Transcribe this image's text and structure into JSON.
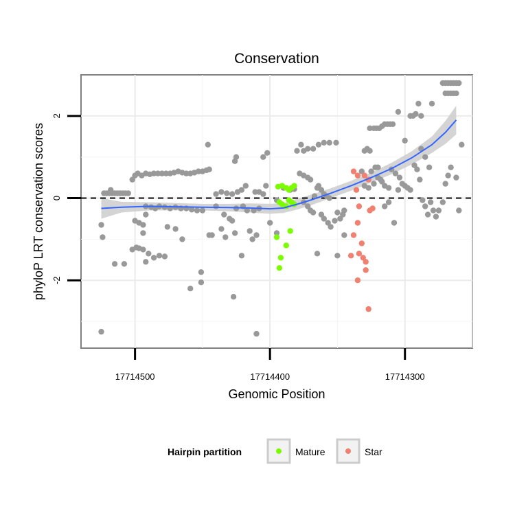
{
  "chart_data": {
    "type": "scatter",
    "title": "Conservation",
    "xlabel": "Genomic Position",
    "ylabel": "phyloP LRT conservation scores",
    "x_reversed": true,
    "xlim": [
      17714540,
      17714250
    ],
    "ylim": [
      -3.65,
      3.0
    ],
    "x_ticks": [
      17714500,
      17714400,
      17714300
    ],
    "x_tick_labels": [
      "17714500",
      "17714400",
      "17714300"
    ],
    "y_ticks": [
      -2,
      0,
      2
    ],
    "y_tick_labels": [
      "-2",
      "0",
      "2"
    ],
    "grid": true,
    "reference_line": {
      "y": 0,
      "style": "dashed"
    },
    "legend": {
      "title": "Hairpin partition",
      "placement": "bottom",
      "entries": [
        {
          "label": "Mature",
          "color": "#7cfc00"
        },
        {
          "label": "Star",
          "color": "#f08070"
        }
      ]
    },
    "series": [
      {
        "group": "other",
        "color": "#999999",
        "points": [
          [
            17714525,
            -3.25
          ],
          [
            17714525,
            -0.65
          ],
          [
            17714524,
            -0.95
          ],
          [
            17714523,
            0.12
          ],
          [
            17714521,
            0.12
          ],
          [
            17714519,
            0.12
          ],
          [
            17714517,
            0.12
          ],
          [
            17714515,
            0.12
          ],
          [
            17714513,
            0.12
          ],
          [
            17714511,
            0.12
          ],
          [
            17714509,
            0.12
          ],
          [
            17714507,
            0.12
          ],
          [
            17714505,
            0.12
          ],
          [
            17714515,
            -1.6
          ],
          [
            17714508,
            -1.6
          ],
          [
            17714518,
            0.2
          ],
          [
            17714502,
            0.45
          ],
          [
            17714500,
            0.55
          ],
          [
            17714498,
            0.6
          ],
          [
            17714495,
            0.55
          ],
          [
            17714492,
            0.6
          ],
          [
            17714489,
            0.58
          ],
          [
            17714486,
            0.6
          ],
          [
            17714483,
            0.6
          ],
          [
            17714480,
            0.6
          ],
          [
            17714477,
            0.6
          ],
          [
            17714474,
            0.6
          ],
          [
            17714471,
            0.62
          ],
          [
            17714468,
            0.65
          ],
          [
            17714465,
            0.62
          ],
          [
            17714462,
            0.6
          ],
          [
            17714459,
            0.6
          ],
          [
            17714456,
            0.62
          ],
          [
            17714453,
            0.65
          ],
          [
            17714450,
            0.65
          ],
          [
            17714447,
            0.68
          ],
          [
            17714445,
            0.7
          ],
          [
            17714500,
            -0.55
          ],
          [
            17714497,
            -0.6
          ],
          [
            17714494,
            -0.85
          ],
          [
            17714494,
            -0.65
          ],
          [
            17714492,
            -0.4
          ],
          [
            17714502,
            -1.25
          ],
          [
            17714499,
            -1.2
          ],
          [
            17714497,
            -1.22
          ],
          [
            17714494,
            -1.25
          ],
          [
            17714490,
            -1.35
          ],
          [
            17714486,
            -1.45
          ],
          [
            17714482,
            -1.4
          ],
          [
            17714478,
            -1.42
          ],
          [
            17714492,
            -1.55
          ],
          [
            17714492,
            -0.2
          ],
          [
            17714488,
            -0.22
          ],
          [
            17714485,
            -0.25
          ],
          [
            17714482,
            -0.2
          ],
          [
            17714478,
            -0.22
          ],
          [
            17714474,
            -0.25
          ],
          [
            17714470,
            -0.22
          ],
          [
            17714466,
            -0.25
          ],
          [
            17714462,
            -0.25
          ],
          [
            17714458,
            -0.28
          ],
          [
            17714454,
            -0.3
          ],
          [
            17714450,
            -0.3
          ],
          [
            17714476,
            -0.7
          ],
          [
            17714470,
            -0.75
          ],
          [
            17714465,
            -1.0
          ],
          [
            17714459,
            -2.2
          ],
          [
            17714451,
            -1.8
          ],
          [
            17714451,
            -2.05
          ],
          [
            17714446,
            1.3
          ],
          [
            17714440,
            0.1
          ],
          [
            17714436,
            0.15
          ],
          [
            17714432,
            0.12
          ],
          [
            17714428,
            0.1
          ],
          [
            17714426,
            0.9
          ],
          [
            17714425,
            1.0
          ],
          [
            17714424,
            0.15
          ],
          [
            17714421,
            0.2
          ],
          [
            17714418,
            0.3
          ],
          [
            17714445,
            -0.9
          ],
          [
            17714443,
            -0.9
          ],
          [
            17714436,
            -0.75
          ],
          [
            17714433,
            -0.95
          ],
          [
            17714428,
            -0.55
          ],
          [
            17714426,
            -0.85
          ],
          [
            17714427,
            -2.4
          ],
          [
            17714421,
            -1.4
          ],
          [
            17714415,
            -0.8
          ],
          [
            17714413,
            -1.0
          ],
          [
            17714410,
            -0.9
          ],
          [
            17714411,
            0.15
          ],
          [
            17714408,
            0.15
          ],
          [
            17714405,
            0.1
          ],
          [
            17714440,
            -0.2
          ],
          [
            17714434,
            -0.4
          ],
          [
            17714430,
            -0.5
          ],
          [
            17714425,
            -0.25
          ],
          [
            17714420,
            -0.2
          ],
          [
            17714417,
            -0.3
          ],
          [
            17714412,
            -0.3
          ],
          [
            17714408,
            -0.25
          ],
          [
            17714405,
            1.0
          ],
          [
            17714402,
            1.1
          ],
          [
            17714400,
            -0.6
          ],
          [
            17714395,
            -0.85
          ],
          [
            17714395,
            -0.05
          ],
          [
            17714410,
            -3.3
          ],
          [
            17714403,
            0.3
          ],
          [
            17714390,
            0.25
          ],
          [
            17714385,
            0.2
          ],
          [
            17714382,
            0.22
          ],
          [
            17714380,
            1.15
          ],
          [
            17714377,
            1.3
          ],
          [
            17714375,
            1.15
          ],
          [
            17714372,
            1.2
          ],
          [
            17714368,
            1.2
          ],
          [
            17714364,
            1.3
          ],
          [
            17714360,
            1.35
          ],
          [
            17714356,
            1.35
          ],
          [
            17714351,
            1.35
          ],
          [
            17714378,
            0.6
          ],
          [
            17714375,
            0.55
          ],
          [
            17714372,
            0.5
          ],
          [
            17714370,
            0.45
          ],
          [
            17714375,
            -0.1
          ],
          [
            17714372,
            -0.2
          ],
          [
            17714370,
            -0.3
          ],
          [
            17714368,
            -0.35
          ],
          [
            17714367,
            0.05
          ],
          [
            17714365,
            0.25
          ],
          [
            17714364,
            0.3
          ],
          [
            17714362,
            0.2
          ],
          [
            17714360,
            0.1
          ],
          [
            17714358,
            0.05
          ],
          [
            17714356,
            0.0
          ],
          [
            17714362,
            -0.4
          ],
          [
            17714360,
            -0.5
          ],
          [
            17714357,
            -0.6
          ],
          [
            17714355,
            -0.7
          ],
          [
            17714352,
            -0.55
          ],
          [
            17714350,
            -0.35
          ],
          [
            17714348,
            -0.5
          ],
          [
            17714346,
            -0.4
          ],
          [
            17714345,
            -0.3
          ],
          [
            17714365,
            -1.35
          ],
          [
            17714350,
            -1.4
          ],
          [
            17714345,
            -0.9
          ],
          [
            17714332,
            0.65
          ],
          [
            17714330,
            1.15
          ],
          [
            17714328,
            1.2
          ],
          [
            17714326,
            1.15
          ],
          [
            17714325,
            0.65
          ],
          [
            17714322,
            0.75
          ],
          [
            17714320,
            0.75
          ],
          [
            17714326,
            1.7
          ],
          [
            17714323,
            1.7
          ],
          [
            17714321,
            1.7
          ],
          [
            17714319,
            1.7
          ],
          [
            17714317,
            1.75
          ],
          [
            17714315,
            1.8
          ],
          [
            17714313,
            1.8
          ],
          [
            17714311,
            1.8
          ],
          [
            17714309,
            1.8
          ],
          [
            17714330,
            0.3
          ],
          [
            17714327,
            0.25
          ],
          [
            17714323,
            0.35
          ],
          [
            17714320,
            0.5
          ],
          [
            17714318,
            0.45
          ],
          [
            17714317,
            0.4
          ],
          [
            17714315,
            0.3
          ],
          [
            17714312,
            0.25
          ],
          [
            17714310,
            0.7
          ],
          [
            17714307,
            0.6
          ],
          [
            17714304,
            0.5
          ],
          [
            17714302,
            0.35
          ],
          [
            17714300,
            0.3
          ],
          [
            17714298,
            0.25
          ],
          [
            17714296,
            0.2
          ],
          [
            17714315,
            -0.2
          ],
          [
            17714312,
            -0.1
          ],
          [
            17714308,
            -0.6
          ],
          [
            17714305,
            0.2
          ],
          [
            17714305,
            2.1
          ],
          [
            17714300,
            1.4
          ],
          [
            17714296,
            2.0
          ],
          [
            17714294,
            2.0
          ],
          [
            17714292,
            2.05
          ],
          [
            17714290,
            2.3
          ],
          [
            17714288,
            2.0
          ],
          [
            17714293,
            0.8
          ],
          [
            17714291,
            0.7
          ],
          [
            17714289,
            0.45
          ],
          [
            17714287,
            -0.05
          ],
          [
            17714285,
            -0.2
          ],
          [
            17714283,
            -0.4
          ],
          [
            17714281,
            -0.1
          ],
          [
            17714279,
            -0.3
          ],
          [
            17714277,
            -0.45
          ],
          [
            17714288,
            1.2
          ],
          [
            17714285,
            1.0
          ],
          [
            17714282,
            0.75
          ],
          [
            17714280,
            2.3
          ],
          [
            17714275,
            -0.3
          ],
          [
            17714272,
            -0.1
          ],
          [
            17714270,
            0.35
          ],
          [
            17714268,
            0.55
          ],
          [
            17714266,
            0.75
          ],
          [
            17714270,
            2.55
          ],
          [
            17714268,
            2.55
          ],
          [
            17714266,
            2.55
          ],
          [
            17714264,
            2.55
          ],
          [
            17714262,
            2.55
          ],
          [
            17714272,
            2.8
          ],
          [
            17714270,
            2.8
          ],
          [
            17714268,
            2.8
          ],
          [
            17714266,
            2.8
          ],
          [
            17714264,
            2.8
          ],
          [
            17714262,
            2.8
          ],
          [
            17714260,
            2.8
          ],
          [
            17714262,
            0.5
          ],
          [
            17714260,
            -0.3
          ],
          [
            17714258,
            1.3
          ]
        ]
      },
      {
        "group": "Mature",
        "color": "#7cfc00",
        "points": [
          [
            17714394,
            0.28
          ],
          [
            17714391,
            0.3
          ],
          [
            17714388,
            0.25
          ],
          [
            17714386,
            0.2
          ],
          [
            17714384,
            0.25
          ],
          [
            17714382,
            0.3
          ],
          [
            17714393,
            -0.1
          ],
          [
            17714391,
            -0.15
          ],
          [
            17714388,
            -0.2
          ],
          [
            17714386,
            -0.05
          ],
          [
            17714384,
            -0.1
          ],
          [
            17714382,
            -0.15
          ],
          [
            17714395,
            -0.95
          ],
          [
            17714392,
            -1.45
          ],
          [
            17714393,
            -1.7
          ],
          [
            17714388,
            -1.15
          ],
          [
            17714385,
            -0.8
          ]
        ]
      },
      {
        "group": "Star",
        "color": "#f08070",
        "points": [
          [
            17714338,
            0.65
          ],
          [
            17714335,
            0.55
          ],
          [
            17714330,
            0.55
          ],
          [
            17714327,
            0.45
          ],
          [
            17714336,
            0.2
          ],
          [
            17714334,
            -0.2
          ],
          [
            17714326,
            -0.3
          ],
          [
            17714324,
            -0.25
          ],
          [
            17714338,
            -0.9
          ],
          [
            17714335,
            -0.6
          ],
          [
            17714332,
            -1.1
          ],
          [
            17714340,
            -1.4
          ],
          [
            17714334,
            -1.35
          ],
          [
            17714331,
            -1.45
          ],
          [
            17714329,
            -1.55
          ],
          [
            17714335,
            -2.0
          ],
          [
            17714329,
            -1.75
          ],
          [
            17714327,
            -2.7
          ]
        ]
      }
    ],
    "smooth": {
      "color": "#3366ff",
      "band_color": "#cccccc",
      "x": [
        17714525,
        17714510,
        17714490,
        17714470,
        17714450,
        17714430,
        17714415,
        17714400,
        17714390,
        17714380,
        17714370,
        17714355,
        17714340,
        17714325,
        17714310,
        17714295,
        17714280,
        17714270,
        17714262
      ],
      "y": [
        -0.25,
        -0.22,
        -0.2,
        -0.21,
        -0.22,
        -0.23,
        -0.24,
        -0.26,
        -0.24,
        -0.15,
        -0.05,
        0.12,
        0.3,
        0.5,
        0.72,
        0.98,
        1.3,
        1.6,
        1.9
      ],
      "lower": [
        -0.5,
        -0.35,
        -0.3,
        -0.3,
        -0.3,
        -0.32,
        -0.35,
        -0.38,
        -0.36,
        -0.28,
        -0.18,
        0.0,
        0.18,
        0.38,
        0.58,
        0.82,
        1.1,
        1.32,
        1.55
      ],
      "upper": [
        0.0,
        -0.09,
        -0.1,
        -0.12,
        -0.14,
        -0.14,
        -0.13,
        -0.14,
        -0.12,
        -0.02,
        0.08,
        0.24,
        0.42,
        0.62,
        0.86,
        1.14,
        1.5,
        1.88,
        2.25
      ]
    }
  }
}
